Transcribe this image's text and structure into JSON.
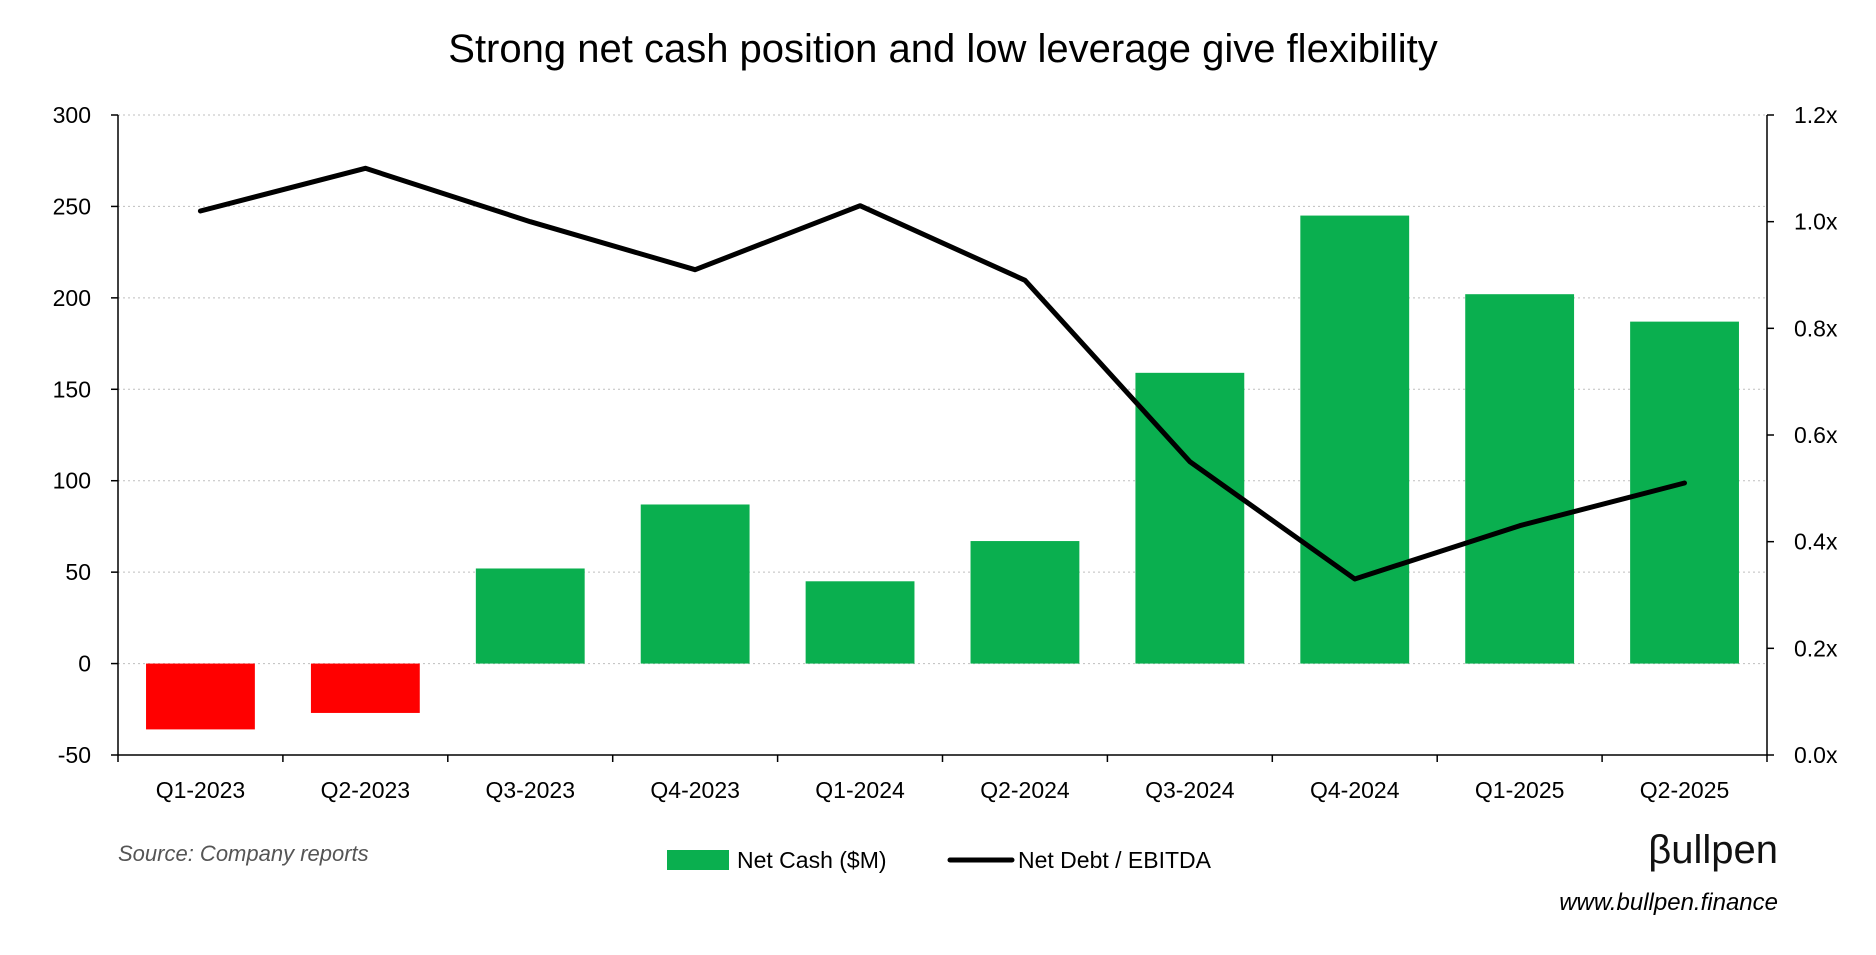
{
  "chart_data": {
    "type": "bar",
    "title": "Strong net cash position and low leverage give flexibility",
    "categories": [
      "Q1-2023",
      "Q2-2023",
      "Q3-2023",
      "Q4-2023",
      "Q1-2024",
      "Q2-2024",
      "Q3-2024",
      "Q4-2024",
      "Q1-2025",
      "Q2-2025"
    ],
    "series": [
      {
        "name": "Net Cash ($M)",
        "type": "bar",
        "axis": "left",
        "values": [
          -36,
          -27,
          52,
          87,
          45,
          67,
          159,
          245,
          202,
          187
        ],
        "color": "#0aaf4f",
        "negative_color": "#ff0000"
      },
      {
        "name": "Net Debt / EBITDA",
        "type": "line",
        "axis": "right",
        "values": [
          1.02,
          1.1,
          1.0,
          0.91,
          1.03,
          0.89,
          0.55,
          0.33,
          0.43,
          0.51
        ],
        "color": "#000000"
      }
    ],
    "y_left": {
      "ylim": [
        -50,
        300
      ],
      "ticks": [
        -50,
        0,
        50,
        100,
        150,
        200,
        250,
        300
      ],
      "tick_labels": [
        "-50",
        "0",
        "50",
        "100",
        "150",
        "200",
        "250",
        "300"
      ]
    },
    "y_right": {
      "ylim": [
        0,
        1.2
      ],
      "ticks": [
        0,
        0.2,
        0.4,
        0.6,
        0.8,
        1.0,
        1.2
      ],
      "tick_labels": [
        "0.0x",
        "0.2x",
        "0.4x",
        "0.6x",
        "0.8x",
        "1.0x",
        "1.2x"
      ]
    },
    "xlabel": "",
    "ylabel": "",
    "grid": true,
    "legend_position": "bottom-center"
  },
  "footer": {
    "source": "Source: Company reports",
    "brand_logo": "βullpen",
    "brand_url": "www.bullpen.finance"
  }
}
